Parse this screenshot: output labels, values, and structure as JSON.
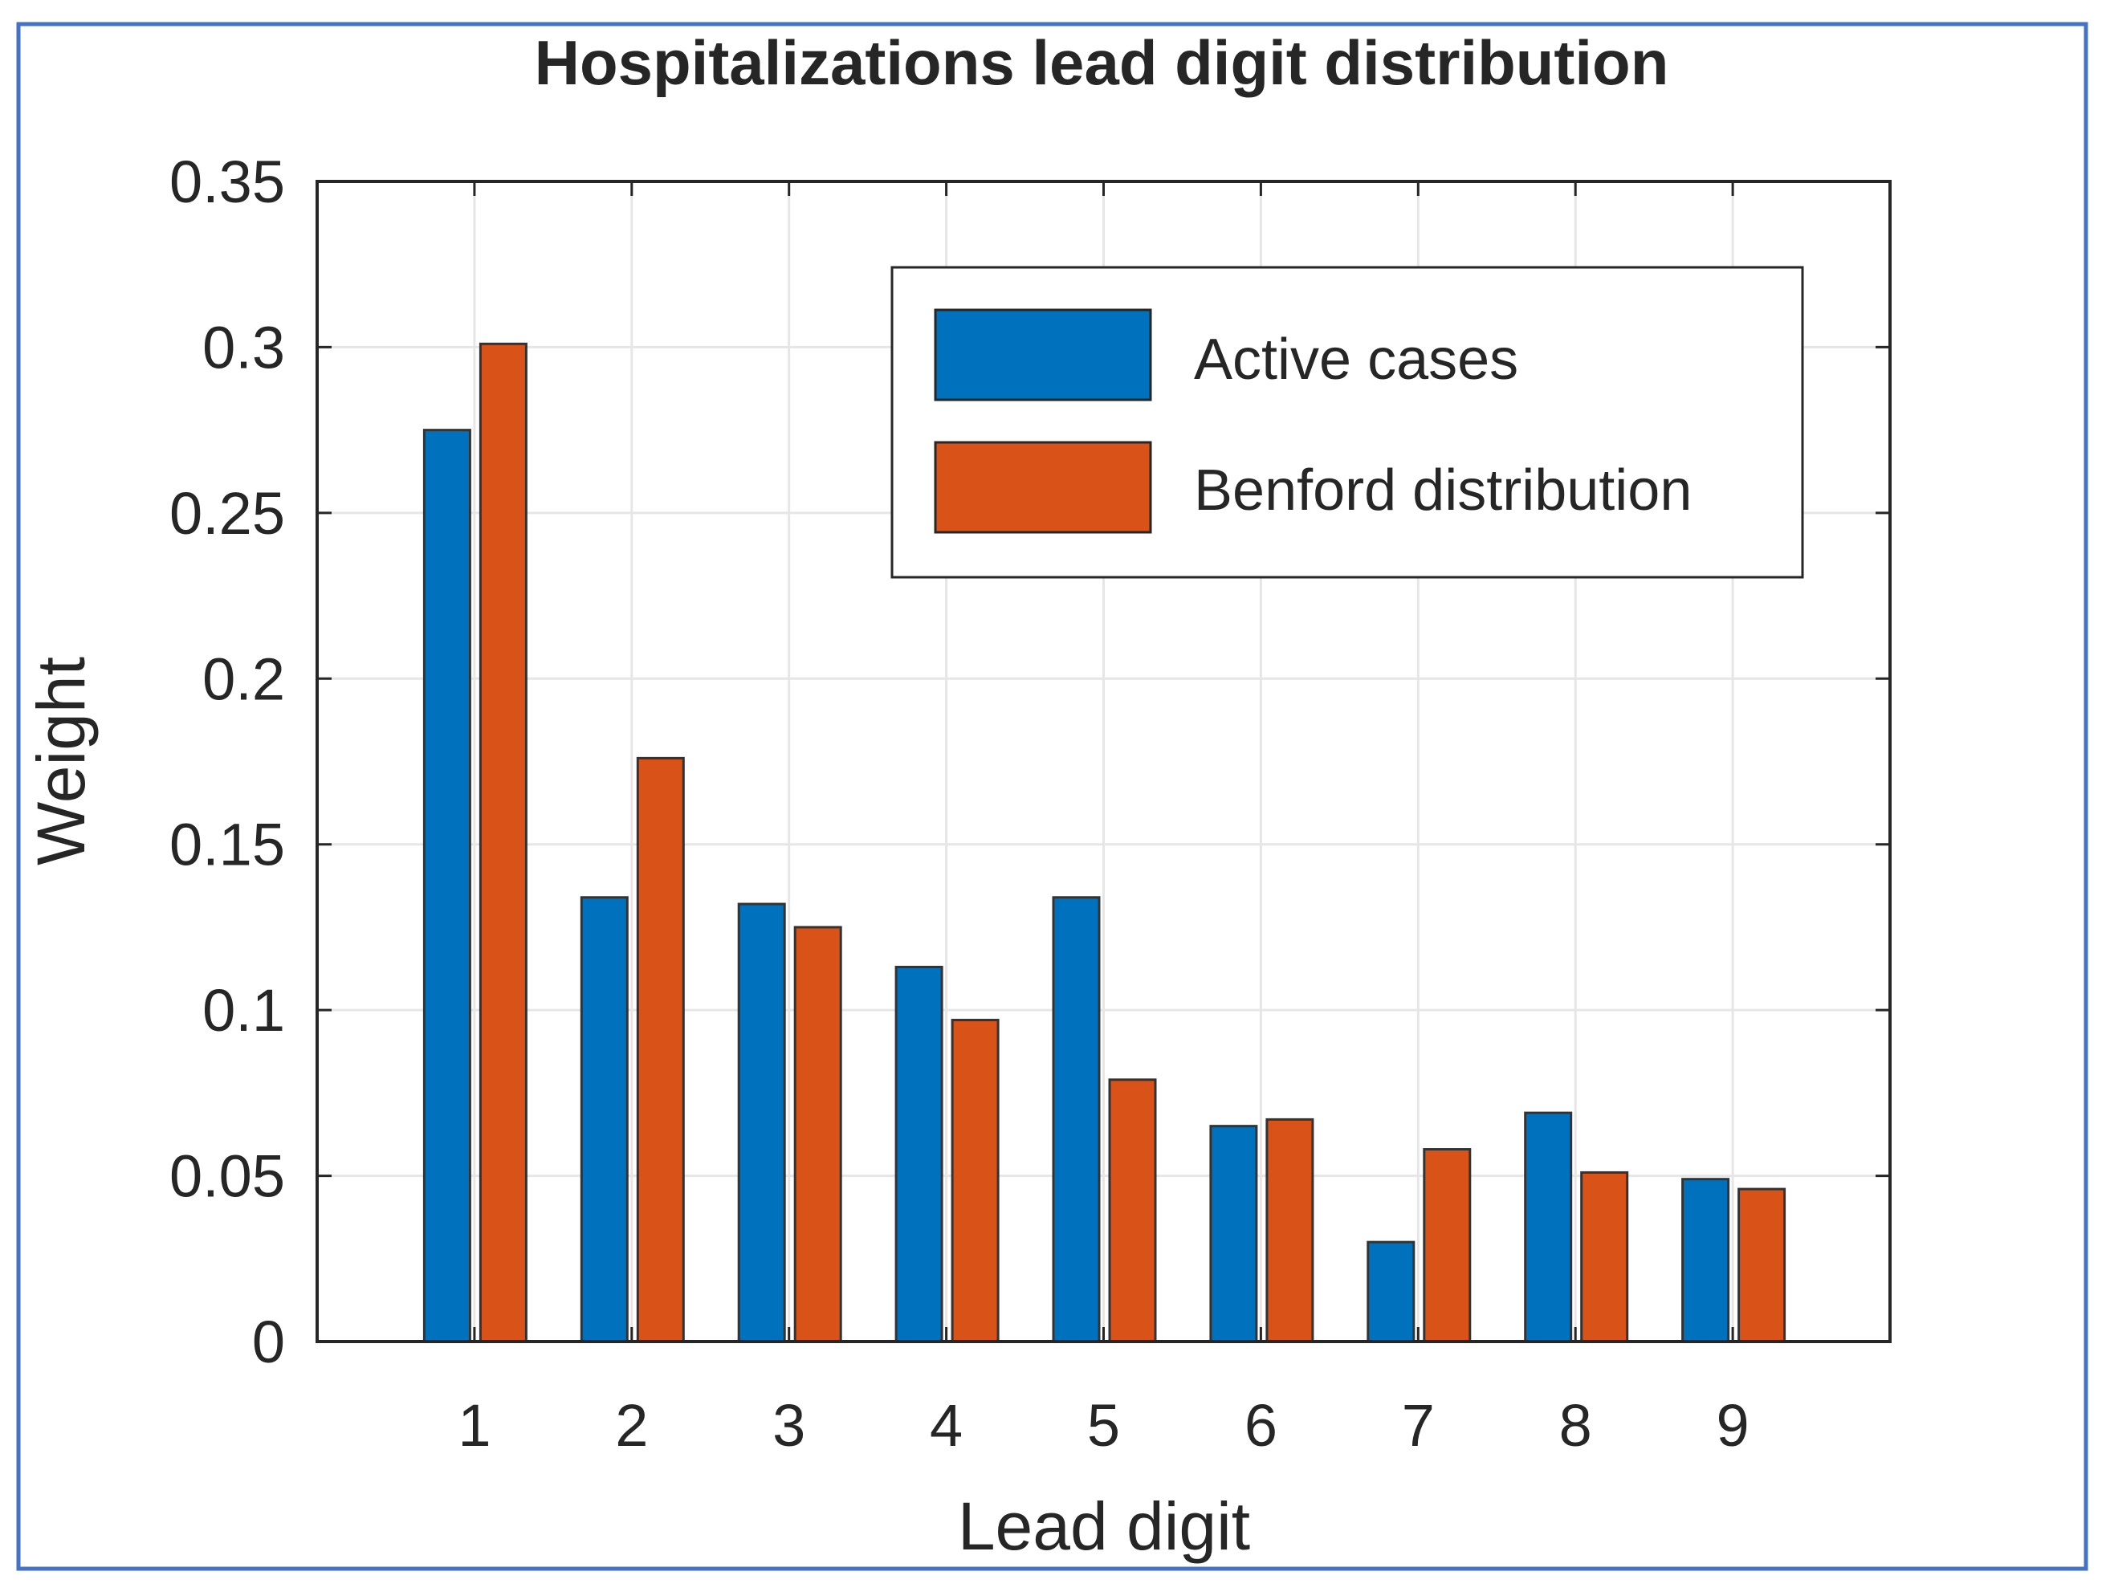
{
  "chart_data": {
    "type": "bar",
    "title": "Hospitalizations lead digit distribution",
    "xlabel": "Lead digit",
    "ylabel": "Weight",
    "categories": [
      "1",
      "2",
      "3",
      "4",
      "5",
      "6",
      "7",
      "8",
      "9"
    ],
    "series": [
      {
        "name": "Active cases",
        "color": "#0072BD",
        "values": [
          0.275,
          0.134,
          0.132,
          0.113,
          0.134,
          0.065,
          0.03,
          0.069,
          0.049
        ]
      },
      {
        "name": "Benford distribution",
        "color": "#D95319",
        "values": [
          0.301,
          0.176,
          0.125,
          0.097,
          0.079,
          0.067,
          0.058,
          0.051,
          0.046
        ]
      }
    ],
    "ylim": [
      0,
      0.35
    ],
    "xlim": [
      0,
      10
    ],
    "yticks": [
      "0",
      "0.05",
      "0.1",
      "0.15",
      "0.2",
      "0.25",
      "0.3",
      "0.35"
    ],
    "grid": true,
    "legend_position": "top-right",
    "frame_color": "#4472C4"
  }
}
